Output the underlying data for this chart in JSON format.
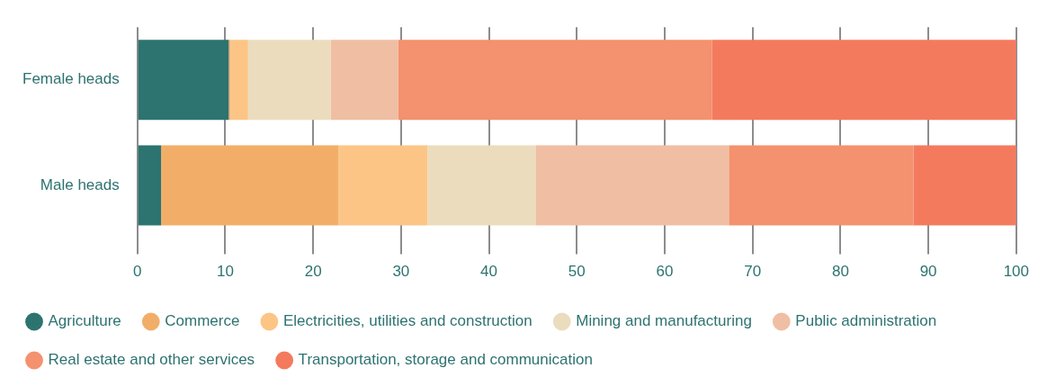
{
  "chart_data": {
    "type": "bar",
    "orientation": "horizontal",
    "stacked": true,
    "categories": [
      "Female heads",
      "Male heads"
    ],
    "series": [
      {
        "name": "Agriculture",
        "color": "#2d7370",
        "values": [
          10.4,
          2.7
        ]
      },
      {
        "name": "Commerce",
        "color": "#f2ae68",
        "values": [
          0.2,
          20.2
        ]
      },
      {
        "name": "Electricities, utilities and construction",
        "color": "#fcc586",
        "values": [
          2.0,
          10.1
        ]
      },
      {
        "name": "Mining and manufacturing",
        "color": "#ebdcbd",
        "values": [
          9.4,
          12.3
        ]
      },
      {
        "name": "Public administration",
        "color": "#f0bea3",
        "values": [
          7.7,
          22.0
        ]
      },
      {
        "name": "Real estate and other services",
        "color": "#f4916e",
        "values": [
          35.7,
          21.0
        ]
      },
      {
        "name": "Transportation, storage and communication",
        "color": "#f47a5e",
        "values": [
          34.6,
          11.7
        ]
      }
    ],
    "xlim": [
      0,
      100
    ],
    "xticks": [
      0,
      10,
      20,
      30,
      40,
      50,
      60,
      70,
      80,
      90,
      100
    ],
    "grid": "x",
    "legend": "bottom"
  }
}
